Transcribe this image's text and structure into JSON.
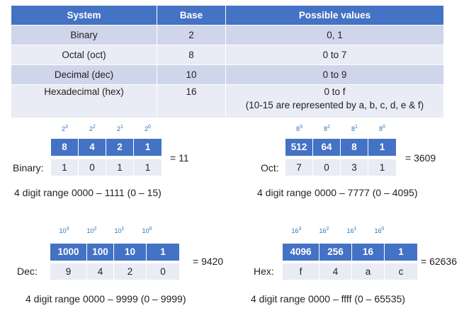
{
  "table": {
    "headers": [
      "System",
      "Base",
      "Possible values"
    ],
    "rows": [
      {
        "system": "Binary",
        "base": "2",
        "values": "0, 1",
        "note": ""
      },
      {
        "system": "Octal (oct)",
        "base": "8",
        "values": "0 to 7",
        "note": ""
      },
      {
        "system": "Decimal (dec)",
        "base": "10",
        "values": "0 to 9",
        "note": ""
      },
      {
        "system": "Hexadecimal (hex)",
        "base": "16",
        "values": "0 to f",
        "note": "(10-15 are represented by a, b, c, d, e & f)"
      }
    ]
  },
  "binary": {
    "powers": [
      {
        "b": "2",
        "e": "3"
      },
      {
        "b": "2",
        "e": "2"
      },
      {
        "b": "2",
        "e": "1"
      },
      {
        "b": "2",
        "e": "0"
      }
    ],
    "place_values": [
      "8",
      "4",
      "2",
      "1"
    ],
    "label": "Binary:",
    "digits": [
      "1",
      "0",
      "1",
      "1"
    ],
    "result": "= 11",
    "range": "4 digit range 0000 – 1111 (0 – 15)"
  },
  "octal": {
    "powers": [
      {
        "b": "8",
        "e": "3"
      },
      {
        "b": "8",
        "e": "2"
      },
      {
        "b": "8",
        "e": "1"
      },
      {
        "b": "8",
        "e": "0"
      }
    ],
    "place_values": [
      "512",
      "64",
      "8",
      "1"
    ],
    "label": "Oct:",
    "digits": [
      "7",
      "0",
      "3",
      "1"
    ],
    "result": "= 3609",
    "range": "4 digit range 0000 – 7777 (0 – 4095)"
  },
  "decimal": {
    "powers": [
      {
        "b": "10",
        "e": "3"
      },
      {
        "b": "10",
        "e": "2"
      },
      {
        "b": "10",
        "e": "1"
      },
      {
        "b": "10",
        "e": "0"
      }
    ],
    "place_values": [
      "1000",
      "100",
      "10",
      "1"
    ],
    "label": "Dec:",
    "digits": [
      "9",
      "4",
      "2",
      "0"
    ],
    "result": "= 9420",
    "range": "4 digit range 0000 – 9999 (0 – 9999)"
  },
  "hex": {
    "powers": [
      {
        "b": "16",
        "e": "3"
      },
      {
        "b": "16",
        "e": "2"
      },
      {
        "b": "16",
        "e": "1"
      },
      {
        "b": "16",
        "e": "0"
      }
    ],
    "place_values": [
      "4096",
      "256",
      "16",
      "1"
    ],
    "label": "Hex:",
    "digits": [
      "f",
      "4",
      "a",
      "c"
    ],
    "result": "= 62636",
    "range": "4 digit range 0000 – ffff (0 – 65535)"
  },
  "colors": {
    "header_blue": "#4472c4",
    "row_dark": "#cfd5ea",
    "row_light": "#e9ebf5",
    "power_blue": "#2e75b6"
  }
}
